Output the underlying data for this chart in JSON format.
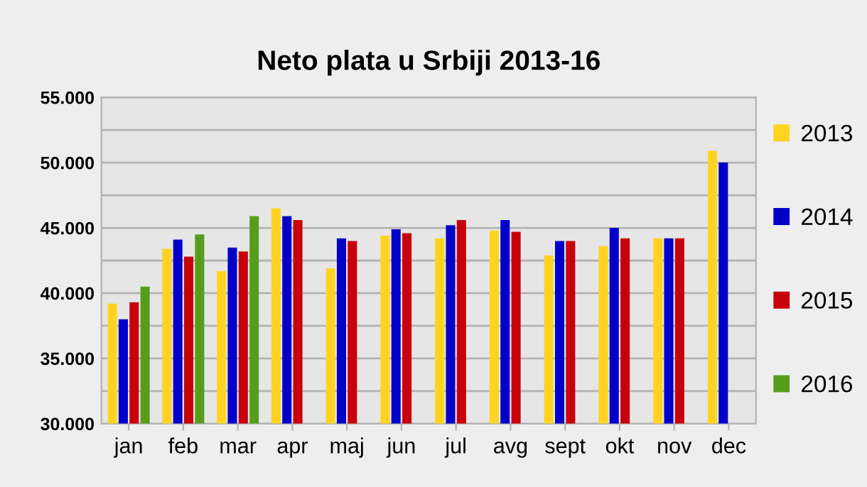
{
  "chart_data": {
    "type": "bar",
    "title": "Neto plata u Srbiji 2013-16",
    "categories": [
      "jan",
      "feb",
      "mar",
      "apr",
      "maj",
      "jun",
      "jul",
      "avg",
      "sept",
      "okt",
      "nov",
      "dec"
    ],
    "series": [
      {
        "name": "2013",
        "color": "#ffd320",
        "values": [
          39200,
          43400,
          41700,
          46500,
          41900,
          44400,
          44200,
          44800,
          42900,
          43600,
          44200,
          50900
        ]
      },
      {
        "name": "2014",
        "color": "#0000c8",
        "values": [
          38000,
          44100,
          43500,
          45900,
          44200,
          44900,
          45200,
          45600,
          44000,
          45000,
          44200,
          50000
        ]
      },
      {
        "name": "2015",
        "color": "#c8000b",
        "values": [
          39300,
          42800,
          43200,
          45600,
          44000,
          44600,
          45600,
          44700,
          44000,
          44200,
          44200,
          null
        ]
      },
      {
        "name": "2016",
        "color": "#579d1c",
        "values": [
          40500,
          44500,
          45900,
          null,
          null,
          null,
          null,
          null,
          null,
          null,
          null,
          null
        ]
      }
    ],
    "ylim": [
      30000,
      55000
    ],
    "yticks": [
      {
        "value": 30000,
        "label": "30.000"
      },
      {
        "value": 32500,
        "label": null
      },
      {
        "value": 35000,
        "label": "35.000"
      },
      {
        "value": 37500,
        "label": null
      },
      {
        "value": 40000,
        "label": "40.000"
      },
      {
        "value": 42500,
        "label": null
      },
      {
        "value": 45000,
        "label": "45.000"
      },
      {
        "value": 47500,
        "label": null
      },
      {
        "value": 50000,
        "label": "50.000"
      },
      {
        "value": 52500,
        "label": null
      },
      {
        "value": 55000,
        "label": "55.000"
      }
    ],
    "grid": "y",
    "legend": "right"
  }
}
